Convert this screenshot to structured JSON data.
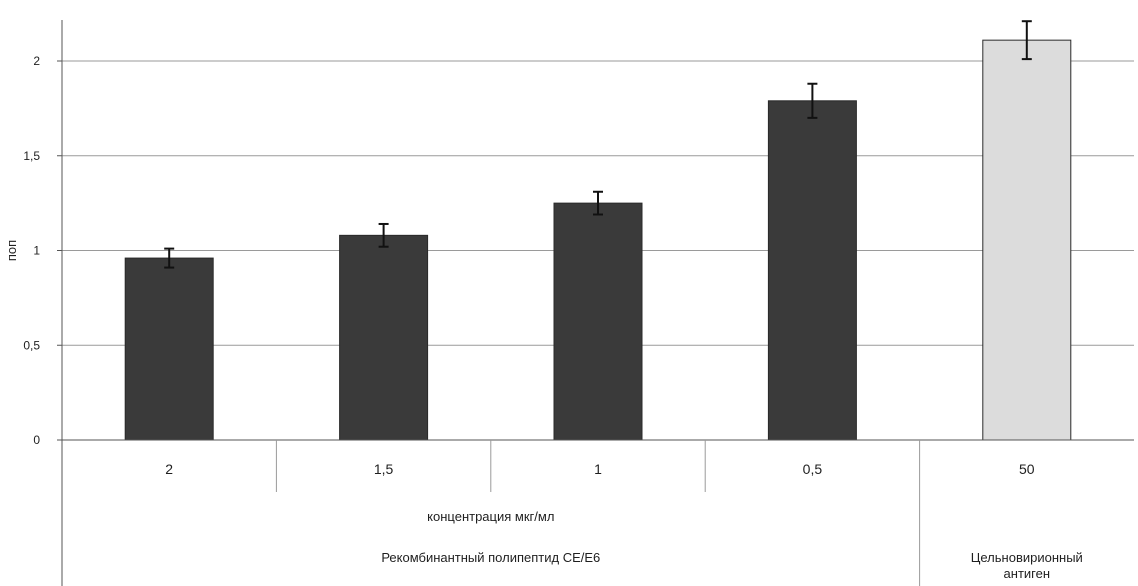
{
  "chart_data": {
    "type": "bar",
    "ylabel": "поп",
    "ylim": [
      0,
      2.2
    ],
    "yticks": [
      0,
      0.5,
      1,
      1.5,
      2
    ],
    "ytick_labels": [
      "0",
      "0,5",
      "1",
      "1,5",
      "2"
    ],
    "grid": true,
    "categories": [
      "2",
      "1,5",
      "1",
      "0,5",
      "50"
    ],
    "values": [
      0.96,
      1.08,
      1.25,
      1.79,
      2.11
    ],
    "errors": [
      0.05,
      0.06,
      0.06,
      0.09,
      0.1
    ],
    "bar_colors": [
      "#3a3a3a",
      "#3a3a3a",
      "#3a3a3a",
      "#3a3a3a",
      "#dcdcdc"
    ],
    "sub_label": "концентрация мкг/мл",
    "groups": [
      {
        "label": "Рекомбинантный полипептид CE/E6",
        "categories": [
          "2",
          "1,5",
          "1",
          "0,5"
        ]
      },
      {
        "label": "Цельновирионный антиген",
        "categories": [
          "50"
        ]
      }
    ]
  }
}
